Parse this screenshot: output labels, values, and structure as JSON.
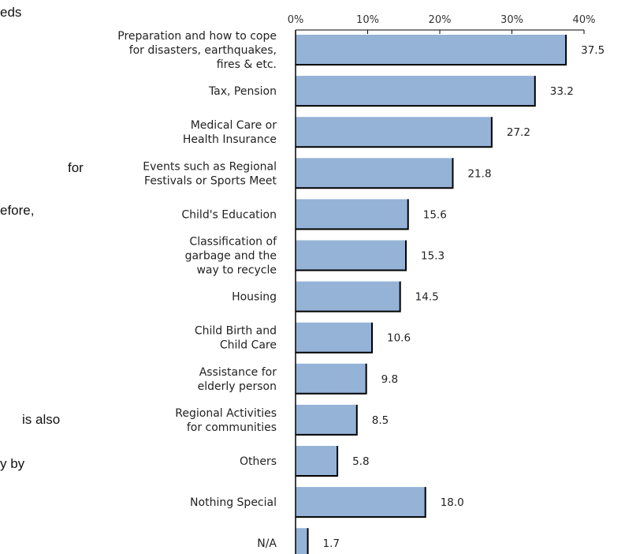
{
  "page_text": {
    "line1": "eds",
    "line2": "for",
    "line3": "efore,",
    "line4": "is also",
    "line5": "y by"
  },
  "chart_data": {
    "type": "bar",
    "orientation": "horizontal",
    "categories": [
      [
        "Preparation and how to cope",
        "for disasters, earthquakes,",
        "fires & etc."
      ],
      [
        "Tax, Pension"
      ],
      [
        "Medical Care or",
        "Health Insurance"
      ],
      [
        "Events such as Regional",
        "Festivals or Sports Meet"
      ],
      [
        "Child's Education"
      ],
      [
        "Classification of",
        "garbage and the",
        "way to recycle"
      ],
      [
        "Housing"
      ],
      [
        "Child Birth and",
        "Child Care"
      ],
      [
        "Assistance for",
        "elderly person"
      ],
      [
        "Regional Activities",
        "for communities"
      ],
      [
        "Others"
      ],
      [
        "Nothing Special"
      ],
      [
        "N/A"
      ]
    ],
    "values": [
      37.5,
      33.2,
      27.2,
      21.8,
      15.6,
      15.3,
      14.5,
      10.6,
      9.8,
      8.5,
      5.8,
      18.0,
      1.7
    ],
    "value_labels": [
      "37.5",
      "33.2",
      "27.2",
      "21.8",
      "15.6",
      "15.3",
      "14.5",
      "10.6",
      "9.8",
      "8.5",
      "5.8",
      "18.0",
      "1.7"
    ],
    "x_ticks": [
      "0%",
      "10%",
      "20%",
      "30%",
      "40%"
    ],
    "xlim": [
      0,
      40
    ],
    "bar_color": "#95b3d7",
    "bar_edge_color": "#000000",
    "grid": false,
    "legend": "none"
  }
}
